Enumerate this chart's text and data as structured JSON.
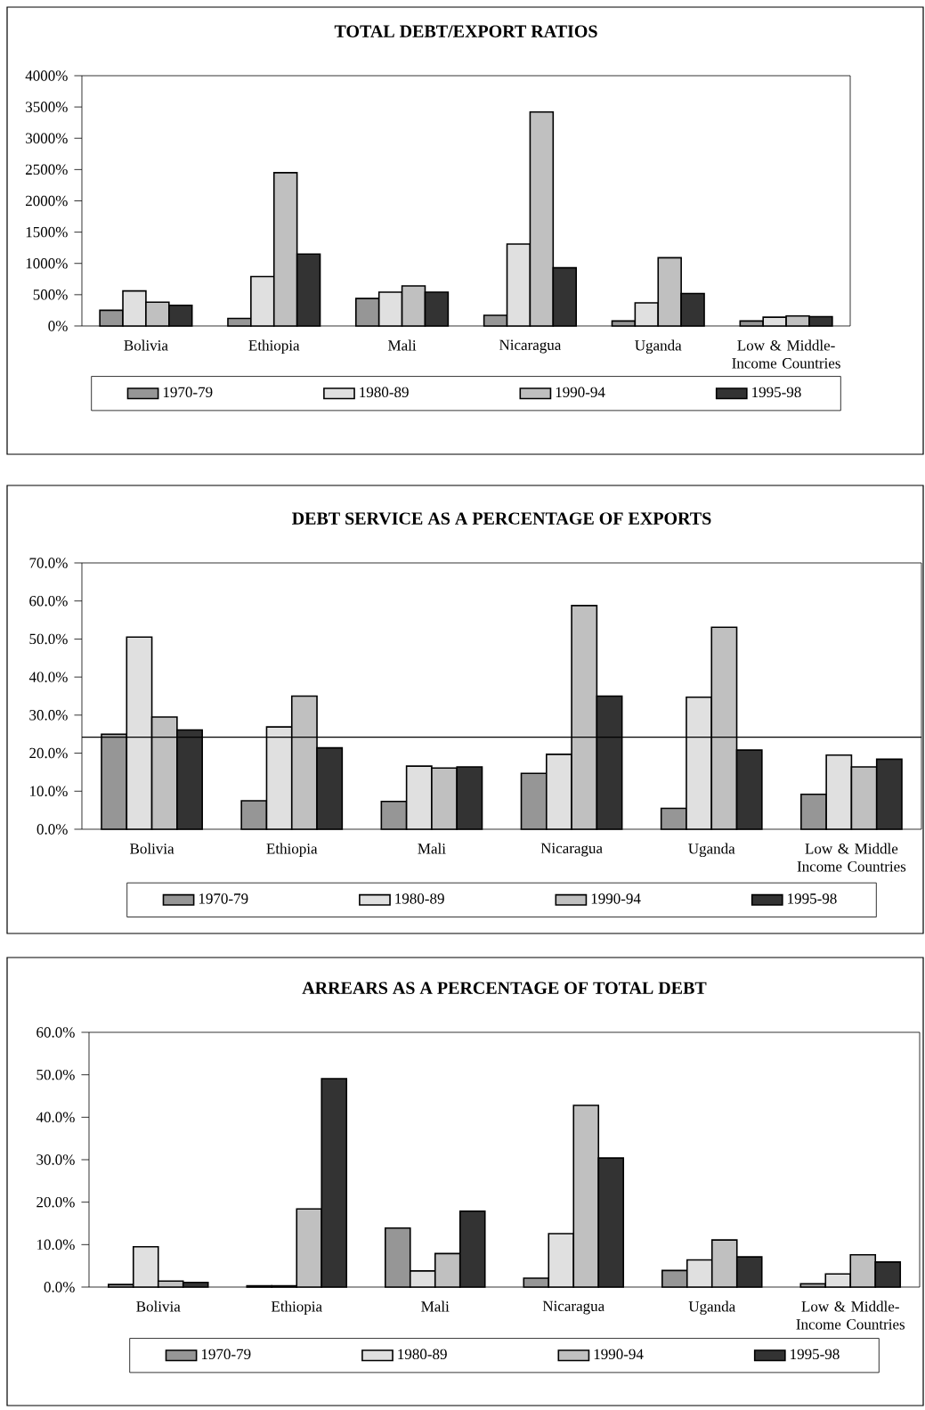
{
  "chart_data": [
    {
      "type": "bar",
      "title": "TOTAL DEBT/EXPORT RATIOS",
      "categories": [
        "Bolivia",
        "Ethiopia",
        "Mali",
        "Nicaragua",
        "Uganda",
        "Low & Middle-Income Countries"
      ],
      "series": [
        {
          "name": "1970-79",
          "color": "#969696",
          "values": [
            250,
            120,
            440,
            170,
            80,
            80
          ]
        },
        {
          "name": "1980-89",
          "color": "#e0e0e0",
          "values": [
            560,
            790,
            540,
            1310,
            370,
            140
          ]
        },
        {
          "name": "1990-94",
          "color": "#c0c0c0",
          "values": [
            380,
            2450,
            640,
            3420,
            1090,
            160
          ]
        },
        {
          "name": "1995-98",
          "color": "#333333",
          "values": [
            330,
            1150,
            540,
            930,
            520,
            150
          ]
        }
      ],
      "ylim": [
        0,
        4000
      ],
      "yticks": [
        {
          "value": 0,
          "label": "0%"
        },
        {
          "value": 500,
          "label": "500%"
        },
        {
          "value": 1000,
          "label": "1000%"
        },
        {
          "value": 1500,
          "label": "1500%"
        },
        {
          "value": 2000,
          "label": "2000%"
        },
        {
          "value": 2500,
          "label": "2500%"
        },
        {
          "value": 3000,
          "label": "3000%"
        },
        {
          "value": 3500,
          "label": "3500%"
        },
        {
          "value": 4000,
          "label": "4000%"
        }
      ],
      "legend": "bottom"
    },
    {
      "type": "bar",
      "title": "DEBT SERVICE AS A PERCENTAGE OF EXPORTS",
      "categories": [
        "Bolivia",
        "Ethiopia",
        "Mali",
        "Nicaragua",
        "Uganda",
        "Low & Middle Income Countries"
      ],
      "series": [
        {
          "name": "1970-79",
          "color": "#969696",
          "values": [
            25.0,
            7.5,
            7.3,
            14.7,
            5.5,
            9.2
          ]
        },
        {
          "name": "1980-89",
          "color": "#e0e0e0",
          "values": [
            50.5,
            26.9,
            16.6,
            19.7,
            34.7,
            19.5
          ]
        },
        {
          "name": "1990-94",
          "color": "#c0c0c0",
          "values": [
            29.5,
            35.0,
            16.1,
            58.8,
            53.1,
            16.4
          ]
        },
        {
          "name": "1995-98",
          "color": "#333333",
          "values": [
            26.1,
            21.4,
            16.4,
            35.0,
            20.8,
            18.4
          ]
        }
      ],
      "ylim": [
        0,
        70
      ],
      "yticks": [
        {
          "value": 0,
          "label": "0.0%"
        },
        {
          "value": 10,
          "label": "10.0%"
        },
        {
          "value": 20,
          "label": "20.0%"
        },
        {
          "value": 30,
          "label": "30.0%"
        },
        {
          "value": 40,
          "label": "40.0%"
        },
        {
          "value": 50,
          "label": "50.0%"
        },
        {
          "value": 60,
          "label": "60.0%"
        },
        {
          "value": 70,
          "label": "70.0%"
        }
      ],
      "ref_lines": [
        {
          "axis": "y",
          "value": 24.2,
          "color": "#000000"
        }
      ],
      "legend": "bottom"
    },
    {
      "type": "bar",
      "title": "ARREARS AS A PERCENTAGE OF TOTAL DEBT",
      "categories": [
        "Bolivia",
        "Ethiopia",
        "Mali",
        "Nicaragua",
        "Uganda",
        "Low & Middle-Income Countries"
      ],
      "series": [
        {
          "name": "1970-79",
          "color": "#969696",
          "values": [
            0.6,
            0.3,
            13.9,
            2.1,
            3.9,
            0.8
          ]
        },
        {
          "name": "1980-89",
          "color": "#e0e0e0",
          "values": [
            9.5,
            0.3,
            3.8,
            12.6,
            6.4,
            3.1
          ]
        },
        {
          "name": "1990-94",
          "color": "#c0c0c0",
          "values": [
            1.4,
            18.4,
            7.9,
            42.8,
            11.1,
            7.6
          ]
        },
        {
          "name": "1995-98",
          "color": "#333333",
          "values": [
            1.1,
            49.1,
            17.9,
            30.4,
            7.1,
            5.9
          ]
        }
      ],
      "ylim": [
        0,
        60
      ],
      "yticks": [
        {
          "value": 0,
          "label": "0.0%"
        },
        {
          "value": 10,
          "label": "10.0%"
        },
        {
          "value": 20,
          "label": "20.0%"
        },
        {
          "value": 30,
          "label": "30.0%"
        },
        {
          "value": 40,
          "label": "40.0%"
        },
        {
          "value": 50,
          "label": "50.0%"
        },
        {
          "value": 60,
          "label": "60.0%"
        }
      ],
      "legend": "bottom"
    }
  ]
}
